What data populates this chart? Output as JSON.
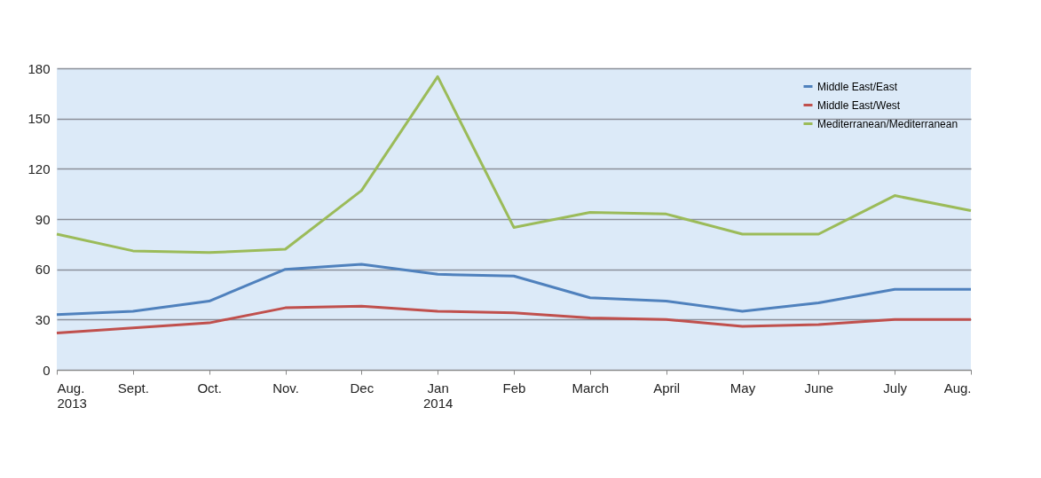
{
  "chart_data": {
    "type": "line",
    "categories": [
      "Aug.\n2013",
      "Sept.",
      "Oct.",
      "Nov.",
      "Dec",
      "Jan\n2014",
      "Feb",
      "March",
      "April",
      "May",
      "June",
      "July",
      "Aug."
    ],
    "series": [
      {
        "name": "Middle East/East",
        "color": "#4f81bd",
        "values": [
          33,
          35,
          41,
          60,
          63,
          57,
          56,
          43,
          41,
          35,
          40,
          48,
          48
        ]
      },
      {
        "name": "Middle East/West",
        "color": "#c0504d",
        "values": [
          22,
          25,
          28,
          37,
          38,
          35,
          34,
          31,
          30,
          26,
          27,
          30,
          30
        ]
      },
      {
        "name": "Mediterranean/Mediterranean",
        "color": "#9bbb59",
        "values": [
          81,
          71,
          70,
          72,
          107,
          175,
          85,
          94,
          93,
          81,
          81,
          104,
          95
        ]
      }
    ],
    "ylim": [
      0,
      180
    ],
    "yticks": [
      0,
      30,
      60,
      90,
      120,
      150,
      180
    ],
    "grid": "y",
    "legend": "top right",
    "marker": "none",
    "line_style": "solid"
  }
}
